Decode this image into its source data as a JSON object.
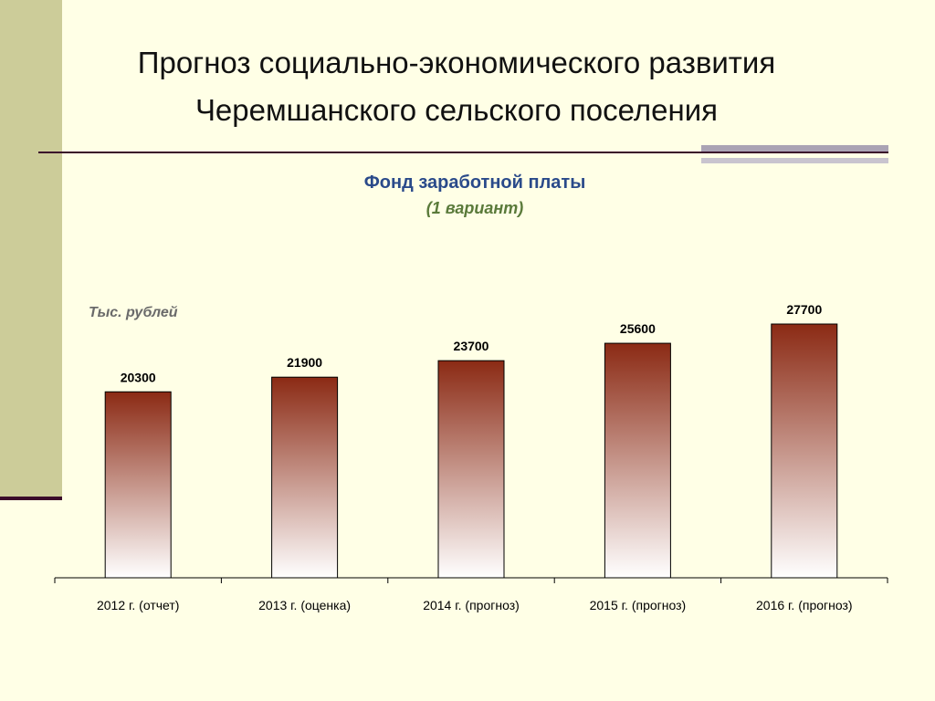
{
  "slide": {
    "title_line1": "Прогноз социально-экономического развития",
    "title_line2": "Черемшанского  сельского поселения"
  },
  "chart_data": {
    "type": "bar",
    "title": "Фонд заработной платы",
    "subtitle": "(1 вариант)",
    "ylabel": "Тыс. рублей",
    "xlabel": "",
    "categories": [
      "2012 г. (отчет)",
      "2013 г. (оценка)",
      "2014 г. (прогноз)",
      "2015 г. (прогноз)",
      "2016 г. (прогноз)"
    ],
    "values": [
      20300,
      21900,
      23700,
      25600,
      27700
    ],
    "ylim": [
      0,
      27700
    ],
    "grid": false,
    "bar_color_top": "#8b2a14",
    "bar_color_bottom": "#ffffff"
  }
}
